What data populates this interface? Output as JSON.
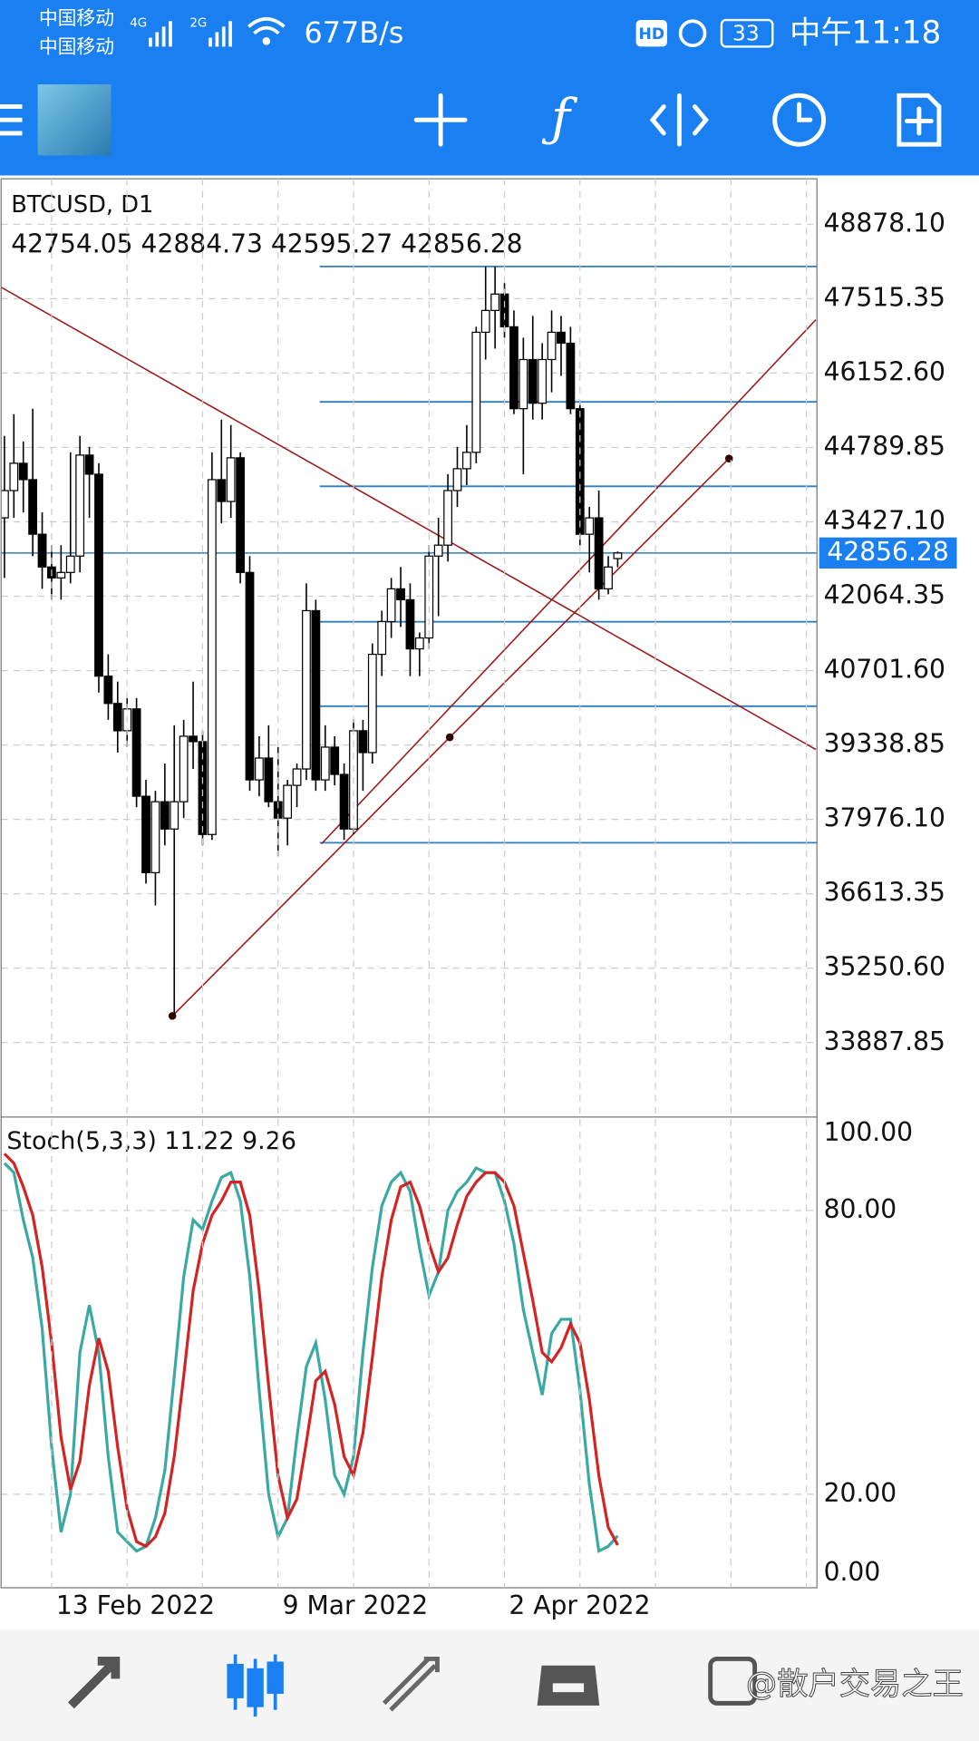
{
  "status_bar": {
    "carrier_1": "中国移动",
    "carrier_2": "中国移动",
    "network_1": "4G",
    "network_2": "2G",
    "speed": "677B/s",
    "hd": "HD",
    "battery": "33",
    "time": "中午11:18"
  },
  "watermark": "@散户交易之王",
  "chart_data": [
    {
      "type": "candlestick",
      "title": "BTCUSD, D1",
      "categories": [
        null,
        null,
        null,
        null,
        null,
        "13 Feb 2022",
        null,
        null,
        null,
        null,
        null,
        null,
        null,
        null,
        null,
        null,
        null,
        null,
        null,
        null,
        null,
        null,
        null,
        null,
        null,
        null,
        null,
        null,
        null,
        "9 Mar 2022",
        null,
        null,
        null,
        null,
        null,
        null,
        null,
        null,
        null,
        null,
        null,
        null,
        null,
        null,
        null,
        null,
        null,
        null,
        null,
        null,
        null,
        null,
        null,
        "2 Apr 2022",
        null,
        null,
        null,
        null,
        null,
        null,
        null,
        null,
        null,
        null,
        null,
        null
      ],
      "open": [
        43500,
        44000,
        44500,
        44200,
        43200,
        42600,
        42400,
        42500,
        42800,
        44650,
        44300,
        40600,
        40100,
        39600,
        40000,
        38400,
        37000,
        38300,
        37800,
        38300,
        39500,
        39400,
        37700,
        44200,
        43800,
        44600,
        42500,
        38700,
        39100,
        38300,
        38000,
        38600,
        38900,
        41800,
        38700,
        39300,
        38800,
        37800,
        39600,
        39200,
        41000,
        41600,
        42200,
        42000,
        41100,
        41300,
        42800,
        43000,
        44000,
        44400,
        44700,
        46900,
        47300,
        47600,
        47000,
        45500,
        46400,
        45600,
        46400,
        46900,
        46700,
        45500,
        43200,
        43500,
        42200,
        42754.05
      ],
      "high": [
        45000,
        45400,
        44900,
        45500,
        43600,
        43000,
        43000,
        44700,
        45000,
        44800,
        44500,
        41000,
        40500,
        40200,
        40200,
        38700,
        38500,
        39000,
        39700,
        39800,
        40500,
        39600,
        44700,
        45300,
        45200,
        44700,
        42800,
        39500,
        39700,
        39300,
        38700,
        39000,
        42300,
        42000,
        39700,
        39500,
        39000,
        39800,
        39800,
        41200,
        41800,
        42400,
        42600,
        42300,
        41400,
        43000,
        43500,
        44300,
        44800,
        45200,
        47000,
        48100,
        48100,
        47800,
        47300,
        46800,
        47200,
        46700,
        47300,
        47200,
        47000,
        45600,
        43700,
        44000,
        42800,
        42884.73
      ],
      "low": [
        42400,
        43500,
        43600,
        42800,
        42200,
        42000,
        42000,
        42300,
        42500,
        43500,
        40300,
        39800,
        39200,
        39300,
        38200,
        36800,
        36400,
        37500,
        34400,
        38000,
        38900,
        37500,
        37600,
        43400,
        43500,
        42300,
        38500,
        38400,
        38200,
        37300,
        37500,
        38200,
        38700,
        38500,
        38500,
        38600,
        37600,
        37700,
        38500,
        39000,
        40600,
        41300,
        41500,
        40600,
        40600,
        41100,
        41700,
        42700,
        43700,
        44100,
        44500,
        46400,
        46600,
        46800,
        45400,
        44300,
        45300,
        45300,
        45800,
        46100,
        45400,
        43000,
        42500,
        42000,
        42100,
        42595.27
      ],
      "close": [
        44000,
        44500,
        44200,
        43200,
        42600,
        42400,
        42500,
        42800,
        44650,
        44300,
        40600,
        40100,
        39600,
        40000,
        38400,
        37000,
        38300,
        37800,
        38300,
        39500,
        39400,
        37700,
        44200,
        43800,
        44600,
        42500,
        38700,
        39100,
        38300,
        38000,
        38600,
        38900,
        41800,
        38700,
        39300,
        38800,
        37800,
        39600,
        39200,
        41000,
        41600,
        42200,
        42000,
        41100,
        41300,
        42800,
        43000,
        44000,
        44400,
        44700,
        46900,
        47300,
        47600,
        47000,
        45500,
        46400,
        45600,
        46400,
        46900,
        46700,
        45500,
        43200,
        43500,
        42200,
        42600,
        42856.28
      ],
      "up_color": "#ffffff",
      "down_color": "#000000",
      "ylim": [
        32545,
        49732
      ],
      "yticks": [
        {
          "value": 48878.1,
          "label": "48878.10"
        },
        47515.35,
        {
          "value": 46152.6,
          "label": "46152.60"
        },
        44789.85,
        {
          "value": 43427.1,
          "label": "43427.10"
        },
        42064.35,
        {
          "value": 40701.6,
          "label": "40701.60"
        },
        39338.85,
        {
          "value": 37976.1,
          "label": "37976.10"
        },
        36613.35,
        {
          "value": 35250.6,
          "label": "35250.60"
        },
        33887.85
      ],
      "grid": true,
      "levels": [
        48105,
        45624,
        44078,
        41596,
        40050,
        37549
      ],
      "level_color": "#2e7fbf",
      "trend_lines": [
        {
          "color": "#9a1b1b",
          "points": [
            [
              -0.5,
              47739
            ],
            [
              86,
              39257
            ]
          ]
        },
        {
          "color": "#9a1b1b",
          "points": [
            [
              17.8,
              34376
            ],
            [
              47.2,
              39481
            ],
            [
              76.8,
              44587
            ]
          ],
          "dots": true
        },
        {
          "color": "#9a1b1b",
          "points": [
            [
              33.6,
              37528
            ],
            [
              86,
              47129
            ]
          ]
        }
      ]
    },
    {
      "type": "line",
      "title": "Stoch(5,3,3)",
      "series": [
        {
          "name": "Main",
          "color": "#3aa9a3",
          "values": [
            90,
            88,
            78,
            70,
            55,
            30,
            12,
            20,
            50,
            60,
            50,
            28,
            12,
            10,
            8,
            9,
            15,
            25,
            45,
            66,
            78,
            76,
            82,
            87,
            88,
            82,
            66,
            42,
            20,
            11,
            15,
            32,
            47,
            52,
            40,
            24,
            20,
            28,
            50,
            68,
            81,
            86,
            88,
            84,
            72,
            62,
            67,
            80,
            84,
            86,
            89,
            88,
            88,
            82,
            73,
            59,
            50,
            41,
            54,
            57,
            57,
            42,
            22,
            8,
            9,
            11.22
          ]
        },
        {
          "name": "Signal",
          "color": "#d42323",
          "values": [
            92,
            90,
            85,
            79,
            68,
            52,
            32,
            21,
            27,
            43,
            53,
            46,
            30,
            17,
            10,
            9,
            11,
            16,
            28,
            45,
            63,
            73,
            79,
            82,
            86,
            86,
            79,
            63,
            43,
            24,
            15,
            19,
            31,
            44,
            46,
            39,
            28,
            24,
            33,
            49,
            66,
            78,
            85,
            86,
            81,
            73,
            67,
            70,
            77,
            83,
            86,
            88,
            88,
            86,
            81,
            71,
            61,
            50,
            48,
            51,
            56,
            52,
            40,
            24,
            13,
            9.26
          ]
        }
      ],
      "ylim": [
        0,
        100
      ],
      "yticks": [
        {
          "value": 100,
          "label": "100.00"
        },
        {
          "value": 80,
          "label": "80.00"
        },
        {
          "value": 20,
          "label": "20.00"
        },
        {
          "value": 0,
          "label": "0.00"
        }
      ],
      "grid": true
    }
  ]
}
